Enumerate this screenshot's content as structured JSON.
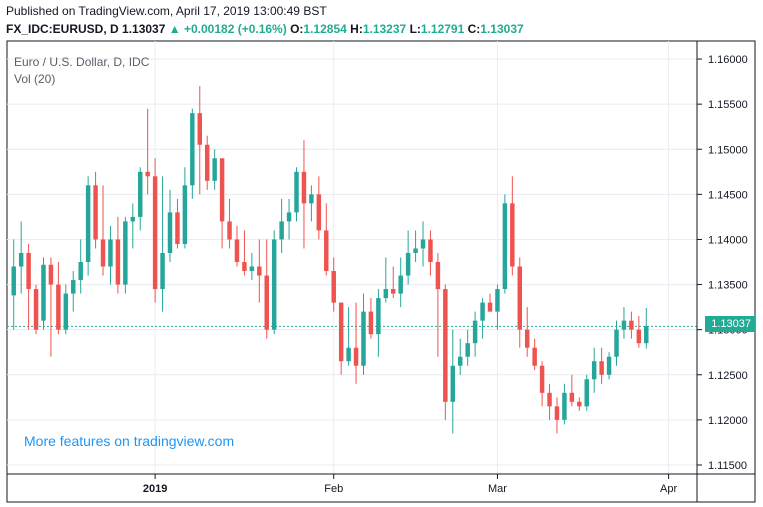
{
  "header": {
    "published": "Published on TradingView.com, April 17, 2019 13:00:49 BST",
    "symbol": "FX_IDC:EURUSD, D",
    "last": "1.13037",
    "change": "▲ +0.00182 (+0.16%)",
    "o_label": "O:",
    "o_value": "1.12854",
    "h_label": "H:",
    "h_value": "1.13237",
    "l_label": "L:",
    "l_value": "1.12791",
    "c_label": "C:",
    "c_value": "1.13037"
  },
  "legend": {
    "title": "Euro / U.S. Dollar, D, IDC",
    "volume": "Vol (20)"
  },
  "promo": "More features on tradingview.com",
  "price_tag": "1.13037",
  "colors": {
    "up": "#26a69a",
    "down": "#ef5350",
    "grid": "#e9ecf2",
    "axis": "#131722",
    "last_line": "#22ab94"
  },
  "chart_data": {
    "type": "candlestick",
    "ylim": [
      1.114,
      1.162
    ],
    "y_ticks": [
      "1.16000",
      "1.15500",
      "1.15000",
      "1.14500",
      "1.14000",
      "1.13500",
      "1.13000",
      "1.12500",
      "1.12000",
      "1.11500"
    ],
    "y_tick_values": [
      1.16,
      1.155,
      1.15,
      1.145,
      1.14,
      1.135,
      1.13,
      1.125,
      1.12,
      1.115
    ],
    "x_ticks": [
      "2019",
      "Feb",
      "Mar",
      "Apr"
    ],
    "x_tick_index": [
      19,
      43,
      65,
      88
    ],
    "last_price": 1.13037,
    "candles": [
      [
        1.1338,
        1.14,
        1.13,
        1.137
      ],
      [
        1.137,
        1.142,
        1.134,
        1.1385
      ],
      [
        1.1385,
        1.1395,
        1.13,
        1.1345
      ],
      [
        1.1345,
        1.135,
        1.1295,
        1.13
      ],
      [
        1.131,
        1.138,
        1.13,
        1.1372
      ],
      [
        1.1372,
        1.138,
        1.127,
        1.135
      ],
      [
        1.135,
        1.1375,
        1.1295,
        1.13
      ],
      [
        1.13,
        1.135,
        1.1295,
        1.134
      ],
      [
        1.134,
        1.1365,
        1.132,
        1.1355
      ],
      [
        1.1355,
        1.14,
        1.134,
        1.1375
      ],
      [
        1.1375,
        1.147,
        1.136,
        1.146
      ],
      [
        1.146,
        1.1475,
        1.139,
        1.14
      ],
      [
        1.14,
        1.146,
        1.136,
        1.137
      ],
      [
        1.137,
        1.1415,
        1.135,
        1.14
      ],
      [
        1.14,
        1.1425,
        1.134,
        1.135
      ],
      [
        1.135,
        1.1425,
        1.134,
        1.142
      ],
      [
        1.142,
        1.144,
        1.139,
        1.1425
      ],
      [
        1.1425,
        1.148,
        1.141,
        1.1475
      ],
      [
        1.1475,
        1.1545,
        1.145,
        1.147
      ],
      [
        1.147,
        1.149,
        1.133,
        1.1345
      ],
      [
        1.1345,
        1.147,
        1.132,
        1.1385
      ],
      [
        1.1385,
        1.1455,
        1.1375,
        1.143
      ],
      [
        1.143,
        1.1445,
        1.139,
        1.1395
      ],
      [
        1.1395,
        1.148,
        1.139,
        1.146
      ],
      [
        1.146,
        1.1545,
        1.1445,
        1.154
      ],
      [
        1.154,
        1.157,
        1.145,
        1.1505
      ],
      [
        1.1505,
        1.1515,
        1.1455,
        1.1465
      ],
      [
        1.1465,
        1.15,
        1.1455,
        1.149
      ],
      [
        1.149,
        1.149,
        1.139,
        1.142
      ],
      [
        1.142,
        1.1445,
        1.139,
        1.14
      ],
      [
        1.14,
        1.1415,
        1.137,
        1.1375
      ],
      [
        1.1375,
        1.141,
        1.136,
        1.1365
      ],
      [
        1.1365,
        1.1385,
        1.1355,
        1.137
      ],
      [
        1.137,
        1.14,
        1.133,
        1.136
      ],
      [
        1.136,
        1.14,
        1.129,
        1.13
      ],
      [
        1.13,
        1.141,
        1.1295,
        1.14
      ],
      [
        1.14,
        1.1445,
        1.1385,
        1.142
      ],
      [
        1.142,
        1.1445,
        1.14,
        1.143
      ],
      [
        1.143,
        1.148,
        1.142,
        1.1475
      ],
      [
        1.1475,
        1.151,
        1.139,
        1.144
      ],
      [
        1.144,
        1.146,
        1.142,
        1.145
      ],
      [
        1.145,
        1.147,
        1.14,
        1.141
      ],
      [
        1.141,
        1.144,
        1.136,
        1.1365
      ],
      [
        1.1365,
        1.138,
        1.132,
        1.133
      ],
      [
        1.133,
        1.133,
        1.125,
        1.1265
      ],
      [
        1.1265,
        1.1325,
        1.126,
        1.128
      ],
      [
        1.128,
        1.133,
        1.124,
        1.126
      ],
      [
        1.126,
        1.134,
        1.125,
        1.132
      ],
      [
        1.132,
        1.1335,
        1.129,
        1.1295
      ],
      [
        1.1295,
        1.1345,
        1.127,
        1.1335
      ],
      [
        1.1335,
        1.138,
        1.133,
        1.1345
      ],
      [
        1.1345,
        1.137,
        1.1335,
        1.134
      ],
      [
        1.134,
        1.138,
        1.1325,
        1.136
      ],
      [
        1.136,
        1.141,
        1.135,
        1.1385
      ],
      [
        1.1385,
        1.141,
        1.1375,
        1.139
      ],
      [
        1.139,
        1.142,
        1.137,
        1.14
      ],
      [
        1.14,
        1.141,
        1.136,
        1.1375
      ],
      [
        1.1375,
        1.1385,
        1.127,
        1.1345
      ],
      [
        1.1345,
        1.135,
        1.12,
        1.122
      ],
      [
        1.122,
        1.13,
        1.1185,
        1.126
      ],
      [
        1.126,
        1.129,
        1.125,
        1.127
      ],
      [
        1.127,
        1.13,
        1.126,
        1.1285
      ],
      [
        1.1285,
        1.132,
        1.127,
        1.131
      ],
      [
        1.131,
        1.1335,
        1.129,
        1.133
      ],
      [
        1.133,
        1.134,
        1.132,
        1.132
      ],
      [
        1.132,
        1.135,
        1.13,
        1.1345
      ],
      [
        1.1345,
        1.145,
        1.134,
        1.144
      ],
      [
        1.144,
        1.147,
        1.136,
        1.137
      ],
      [
        1.137,
        1.138,
        1.128,
        1.13
      ],
      [
        1.13,
        1.1325,
        1.127,
        1.128
      ],
      [
        1.128,
        1.129,
        1.1255,
        1.126
      ],
      [
        1.126,
        1.1265,
        1.1215,
        1.123
      ],
      [
        1.123,
        1.124,
        1.12,
        1.1215
      ],
      [
        1.1215,
        1.1225,
        1.1185,
        1.12
      ],
      [
        1.12,
        1.124,
        1.1195,
        1.123
      ],
      [
        1.123,
        1.125,
        1.1215,
        1.122
      ],
      [
        1.122,
        1.1225,
        1.121,
        1.1215
      ],
      [
        1.1215,
        1.125,
        1.121,
        1.1245
      ],
      [
        1.1245,
        1.128,
        1.123,
        1.1265
      ],
      [
        1.1265,
        1.128,
        1.124,
        1.125
      ],
      [
        1.125,
        1.1275,
        1.1245,
        1.127
      ],
      [
        1.127,
        1.131,
        1.126,
        1.13
      ],
      [
        1.13,
        1.1325,
        1.129,
        1.131
      ],
      [
        1.131,
        1.132,
        1.129,
        1.13
      ],
      [
        1.13,
        1.1315,
        1.128,
        1.1285
      ],
      [
        1.1285,
        1.1324,
        1.1279,
        1.1304
      ]
    ]
  }
}
